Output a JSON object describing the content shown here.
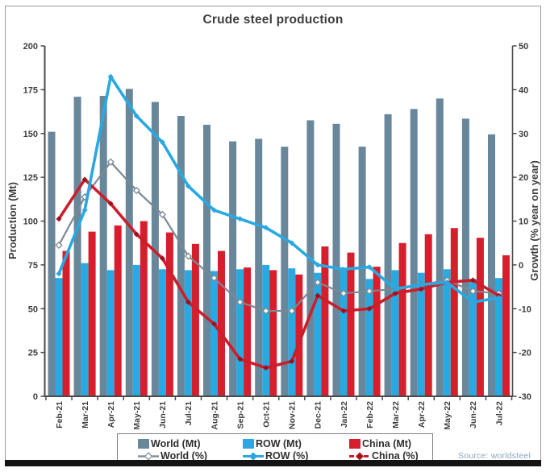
{
  "title": "Crude steel production",
  "source_note": "Source: worldsteel",
  "colors": {
    "world_bar": "#69879b",
    "row_bar": "#29a9e1",
    "china_bar": "#d61e2d",
    "world_line": "#7b8894",
    "row_line": "#29a9e1",
    "china_line": "#c91f2c",
    "china_marker": "#9c1120",
    "text": "#3d3d3d",
    "source_text": "#8ba7bd",
    "axis": "#4a4a4a"
  },
  "chart_data": {
    "type": "bar+line combo, dual axis",
    "categories": [
      "Feb-21",
      "Mar-21",
      "Apr-21",
      "May-21",
      "Jun-21",
      "Jul-21",
      "Aug-21",
      "Sep-21",
      "Oct-21",
      "Nov-21",
      "Dec-21",
      "Jan-22",
      "Feb-22",
      "Mar-22",
      "Apr-22",
      "May-22",
      "Jun-22",
      "Jul-22"
    ],
    "bar_series": [
      {
        "name": "World (Mt)",
        "axis": "left",
        "color_key": "world_bar",
        "values": [
          151,
          171,
          171.5,
          175.5,
          168,
          160,
          155,
          145.5,
          147,
          142.5,
          157.5,
          155.5,
          142.5,
          161,
          164,
          170,
          158.5,
          149.5
        ]
      },
      {
        "name": "ROW (Mt)",
        "axis": "left",
        "color_key": "row_bar",
        "values": [
          67.5,
          76,
          72,
          75,
          72.5,
          72,
          71.5,
          72.5,
          75,
          73,
          70.5,
          72,
          67,
          72,
          70.5,
          72.5,
          67,
          67.5
        ]
      },
      {
        "name": "China (Mt)",
        "axis": "left",
        "color_key": "china_bar",
        "values": [
          83,
          94,
          97.5,
          100,
          93.5,
          87,
          83,
          73.5,
          72,
          69.5,
          85.5,
          82,
          74,
          87.5,
          92.5,
          96,
          90.5,
          80.5
        ]
      }
    ],
    "line_series": [
      {
        "name": "World (%)",
        "axis": "right",
        "color_key": "world_line",
        "marker": "open-diamond",
        "width": 2.2,
        "values": [
          4.5,
          15.5,
          23.5,
          17,
          11.5,
          2,
          -3,
          -8.5,
          -10.5,
          -10.5,
          -4,
          -6.5,
          -6,
          -5.5,
          -4.5,
          -3.5,
          -6,
          -6.5
        ]
      },
      {
        "name": "ROW (%)",
        "axis": "right",
        "color_key": "row_line",
        "marker": "diamond",
        "width": 3.6,
        "values": [
          -2,
          12.5,
          43,
          34,
          28,
          18,
          12.5,
          10.5,
          8.5,
          5,
          0,
          -1,
          -0.5,
          -5.5,
          -4.5,
          -4,
          -8.5,
          -7.5
        ]
      },
      {
        "name": "China (%)",
        "axis": "right",
        "color_key": "china_line",
        "marker": "dark-diamond",
        "width": 3.6,
        "values": [
          10.5,
          19.5,
          14,
          7,
          1.5,
          -8.5,
          -13.5,
          -21.5,
          -23.5,
          -22,
          -7,
          -10.5,
          -10,
          -6.5,
          -5.5,
          -4,
          -3.5,
          -7
        ]
      }
    ],
    "left_axis": {
      "label": "Production (Mt)",
      "min": 0,
      "max": 200,
      "ticks": [
        0,
        25,
        50,
        75,
        100,
        125,
        150,
        175,
        200
      ]
    },
    "right_axis": {
      "label": "Growth (% year on year)",
      "min": -30,
      "max": 50,
      "ticks": [
        -30,
        -20,
        -10,
        0,
        10,
        20,
        30,
        40,
        50
      ]
    },
    "grid": false,
    "legend_position": "bottom"
  }
}
